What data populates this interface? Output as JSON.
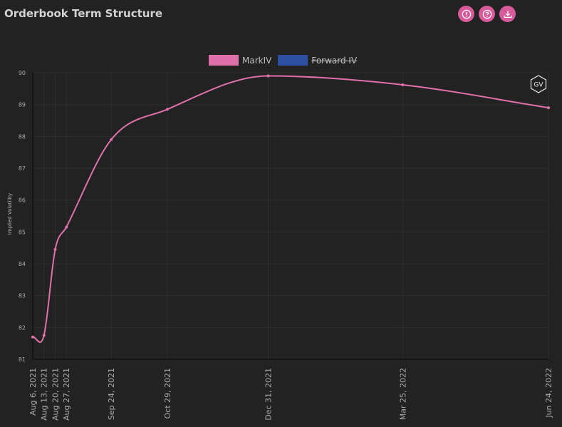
{
  "header": {
    "title": "Orderbook Term Structure",
    "buttons": [
      {
        "icon": "info-icon"
      },
      {
        "icon": "help-icon"
      },
      {
        "icon": "download-icon"
      }
    ]
  },
  "badge": {
    "label": "GV"
  },
  "colors": {
    "background": "#222222",
    "grid": "#2e2e2e",
    "mark_iv": "#e070aa",
    "forward_iv": "#2c4fa3",
    "button": "#d85a9a"
  },
  "chart_data": {
    "type": "line",
    "title": "",
    "xlabel": "",
    "ylabel": "Implied Volatility",
    "ylim": [
      81,
      90
    ],
    "yticks": [
      81,
      82,
      83,
      84,
      85,
      86,
      87,
      88,
      89,
      90
    ],
    "x_type": "date",
    "grid": true,
    "legend": "top-center",
    "series": [
      {
        "name": "MarkIV",
        "visible": true,
        "points": [
          {
            "x": "2021-08-06",
            "y": 81.7
          },
          {
            "x": "2021-08-13",
            "y": 81.75
          },
          {
            "x": "2021-08-20",
            "y": 84.45
          },
          {
            "x": "2021-08-27",
            "y": 85.15
          },
          {
            "x": "2021-09-24",
            "y": 87.9
          },
          {
            "x": "2021-10-29",
            "y": 88.85
          },
          {
            "x": "2021-12-31",
            "y": 89.9
          },
          {
            "x": "2022-03-25",
            "y": 89.62
          },
          {
            "x": "2022-06-24",
            "y": 88.9
          }
        ]
      },
      {
        "name": "Forward IV",
        "visible": false,
        "points": []
      }
    ],
    "xtick_labels": [
      "Aug 6, 2021",
      "Aug 13, 2021",
      "Aug 20, 2021",
      "Aug 27, 2021",
      "Sep 24, 2021",
      "Oct 29, 2021",
      "Dec 31, 2021",
      "Mar 25, 2022",
      "Jun 24, 2022"
    ]
  }
}
